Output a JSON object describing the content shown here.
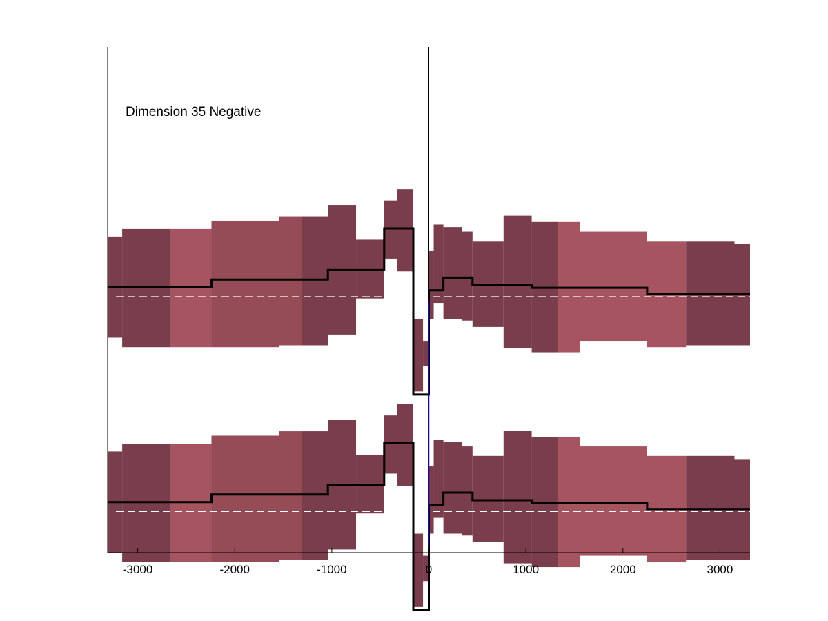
{
  "chart_data": {
    "type": "area",
    "title": "Dimension 35 Negative",
    "xlabel": "",
    "ylabel": "",
    "xlim": [
      -3310,
      3310
    ],
    "ylim": [
      -4.05,
      3.95
    ],
    "grid": false,
    "x_ticks": [
      -3000,
      -2000,
      -1000,
      0,
      1000,
      2000,
      3000
    ],
    "x_tick_labels": [
      "-3000",
      "-2000",
      "-1000",
      "0",
      "1000",
      "2000",
      "3000"
    ],
    "colors": {
      "band_dark": "#7a3d4c",
      "band_light": "#a65560",
      "band_mid": "#964c57",
      "mean_line": "#000000",
      "baseline": "#ffffff",
      "zero_line": "#1a0a8a"
    },
    "panels": [
      {
        "name": "upper",
        "offset": 0
      },
      {
        "name": "lower",
        "offset": -3.4
      }
    ],
    "bands": [
      {
        "x0": -3310,
        "x1": -3160,
        "lo": -0.65,
        "hi": 0.95,
        "shade": "dark"
      },
      {
        "x0": -3160,
        "x1": -2660,
        "lo": -0.8,
        "hi": 1.07,
        "shade": "dark"
      },
      {
        "x0": -2660,
        "x1": -2240,
        "lo": -0.8,
        "hi": 1.07,
        "shade": "light"
      },
      {
        "x0": -2240,
        "x1": -1540,
        "lo": -0.8,
        "hi": 1.2,
        "shade": "mid"
      },
      {
        "x0": -1540,
        "x1": -1310,
        "lo": -0.77,
        "hi": 1.27,
        "shade": "mid"
      },
      {
        "x0": -1310,
        "x1": -1040,
        "lo": -0.77,
        "hi": 1.27,
        "shade": "dark"
      },
      {
        "x0": -1040,
        "x1": -750,
        "lo": -0.6,
        "hi": 1.45,
        "shade": "dark"
      },
      {
        "x0": -750,
        "x1": -460,
        "lo": -0.03,
        "hi": 0.9,
        "shade": "dark"
      },
      {
        "x0": -460,
        "x1": -330,
        "lo": 0.6,
        "hi": 1.52,
        "shade": "dark"
      },
      {
        "x0": -330,
        "x1": -160,
        "lo": 0.4,
        "hi": 1.7,
        "shade": "dark"
      },
      {
        "x0": -160,
        "x1": -60,
        "lo": -1.5,
        "hi": -0.35,
        "shade": "dark"
      },
      {
        "x0": -60,
        "x1": 0,
        "lo": -1.1,
        "hi": -0.7,
        "shade": "dark"
      },
      {
        "x0": 0,
        "x1": 50,
        "lo": -0.35,
        "hi": 0.72,
        "shade": "dark"
      },
      {
        "x0": 50,
        "x1": 150,
        "lo": -0.1,
        "hi": 1.14,
        "shade": "dark"
      },
      {
        "x0": 150,
        "x1": 340,
        "lo": -0.35,
        "hi": 1.1,
        "shade": "dark"
      },
      {
        "x0": 340,
        "x1": 450,
        "lo": -0.38,
        "hi": 1.03,
        "shade": "dark"
      },
      {
        "x0": 450,
        "x1": 770,
        "lo": -0.48,
        "hi": 0.88,
        "shade": "dark"
      },
      {
        "x0": 770,
        "x1": 1060,
        "lo": -0.82,
        "hi": 1.28,
        "shade": "dark"
      },
      {
        "x0": 1060,
        "x1": 1330,
        "lo": -0.88,
        "hi": 1.18,
        "shade": "dark"
      },
      {
        "x0": 1330,
        "x1": 1560,
        "lo": -0.88,
        "hi": 1.18,
        "shade": "light"
      },
      {
        "x0": 1560,
        "x1": 2250,
        "lo": -0.7,
        "hi": 1.03,
        "shade": "light"
      },
      {
        "x0": 2250,
        "x1": 2650,
        "lo": -0.8,
        "hi": 0.88,
        "shade": "light"
      },
      {
        "x0": 2650,
        "x1": 3150,
        "lo": -0.77,
        "hi": 0.88,
        "shade": "dark"
      },
      {
        "x0": 3150,
        "x1": 3310,
        "lo": -0.77,
        "hi": 0.83,
        "shade": "dark"
      }
    ],
    "series": [
      {
        "name": "",
        "type": "step",
        "x": [
          -3310,
          -2240,
          -2240,
          -1040,
          -1040,
          -460,
          -460,
          -160,
          -160,
          0,
          0,
          150,
          150,
          450,
          450,
          1060,
          1060,
          2250,
          2250,
          3310
        ],
        "y": [
          0.15,
          0.15,
          0.27,
          0.27,
          0.42,
          0.42,
          1.08,
          1.08,
          -1.55,
          -1.55,
          0.1,
          0.1,
          0.3,
          0.3,
          0.18,
          0.18,
          0.14,
          0.14,
          0.04,
          0.04
        ]
      }
    ]
  }
}
